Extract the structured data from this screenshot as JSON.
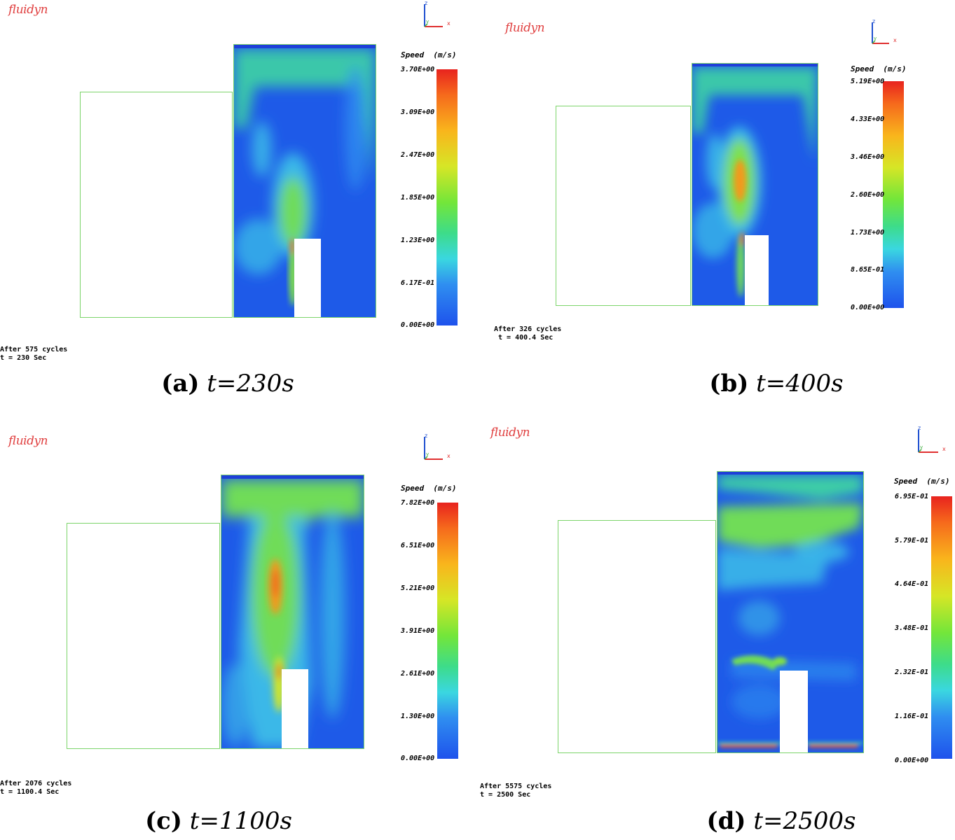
{
  "figure": {
    "panels": [
      {
        "id": "a",
        "logo": "fluidyn",
        "axis_labels": {
          "z": "z",
          "x": "x",
          "y": "y"
        },
        "colorbar": {
          "title": "Speed  (m/s)",
          "ticks": [
            "3.70E+00",
            "3.09E+00",
            "2.47E+00",
            "1.85E+00",
            "1.23E+00",
            "6.17E-01",
            "0.00E+00"
          ]
        },
        "info_line1": "After 575 cycles",
        "info_line2": "t = 230 Sec",
        "caption_label": "(a)",
        "caption_time": "t=230s"
      },
      {
        "id": "b",
        "logo": "fluidyn",
        "axis_labels": {
          "z": "z",
          "x": "x",
          "y": "y"
        },
        "colorbar": {
          "title": "Speed  (m/s)",
          "ticks": [
            "5.19E+00",
            "4.33E+00",
            "3.46E+00",
            "2.60E+00",
            "1.73E+00",
            "8.65E-01",
            "0.00E+00"
          ]
        },
        "info_line1": "After 326 cycles",
        "info_line2": " t = 400.4 Sec",
        "caption_label": "(b)",
        "caption_time": "t=400s"
      },
      {
        "id": "c",
        "logo": "fluidyn",
        "axis_labels": {
          "z": "z",
          "x": "x",
          "y": "y"
        },
        "colorbar": {
          "title": "Speed  (m/s)",
          "ticks": [
            "7.82E+00",
            "6.51E+00",
            "5.21E+00",
            "3.91E+00",
            "2.61E+00",
            "1.30E+00",
            "0.00E+00"
          ]
        },
        "info_line1": "After 2076 cycles",
        "info_line2": "t = 1100.4 Sec",
        "caption_label": "(c)",
        "caption_time": "t=1100s"
      },
      {
        "id": "d",
        "logo": "fluidyn",
        "axis_labels": {
          "z": "z",
          "x": "x",
          "y": "y"
        },
        "colorbar": {
          "title": "Speed  (m/s)",
          "ticks": [
            "6.95E-01",
            "5.79E-01",
            "4.64E-01",
            "3.48E-01",
            "2.32E-01",
            "1.16E-01",
            "0.00E+00"
          ]
        },
        "info_line1": "After 5575 cycles",
        "info_line2": "t = 2500 Sec",
        "caption_label": "(d)",
        "caption_time": "t=2500s"
      }
    ],
    "colors": {
      "background": "#ffffff",
      "outline_green": "#7cd46a",
      "logo_red": "#e04040",
      "field_blue": "#1e5ae8"
    }
  }
}
